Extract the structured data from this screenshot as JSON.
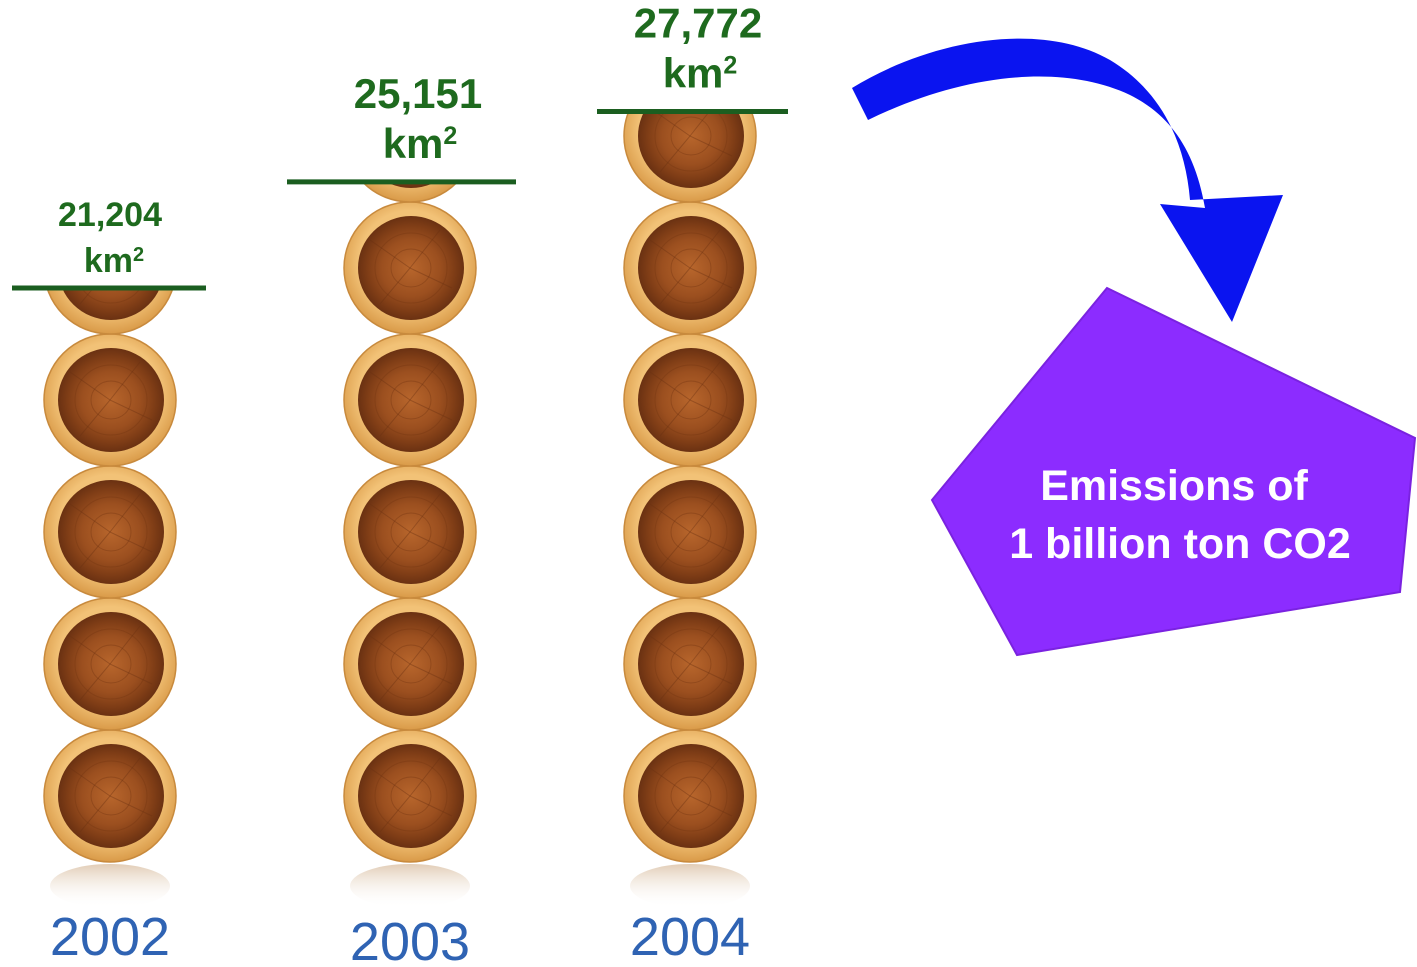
{
  "chart_data": {
    "type": "bar",
    "categories": [
      "2002",
      "2003",
      "2004"
    ],
    "values": [
      21204,
      25151,
      27772
    ],
    "value_labels": [
      "21,204",
      "25,151",
      "27,772"
    ],
    "unit_base": "km",
    "unit_sup": "2"
  },
  "callout": {
    "line1": "Emissions of",
    "line2": "1 billion ton CO2"
  },
  "colors": {
    "value_text": "#1e6a1e",
    "level_line": "#1b5e20",
    "year_text": "#2f63b3",
    "arrow": "#0a14f0",
    "callout_fill": "#8c2cff",
    "callout_text": "#ffffff",
    "log_outer": "#e3ab59",
    "log_inner": "#9b4f1f"
  }
}
